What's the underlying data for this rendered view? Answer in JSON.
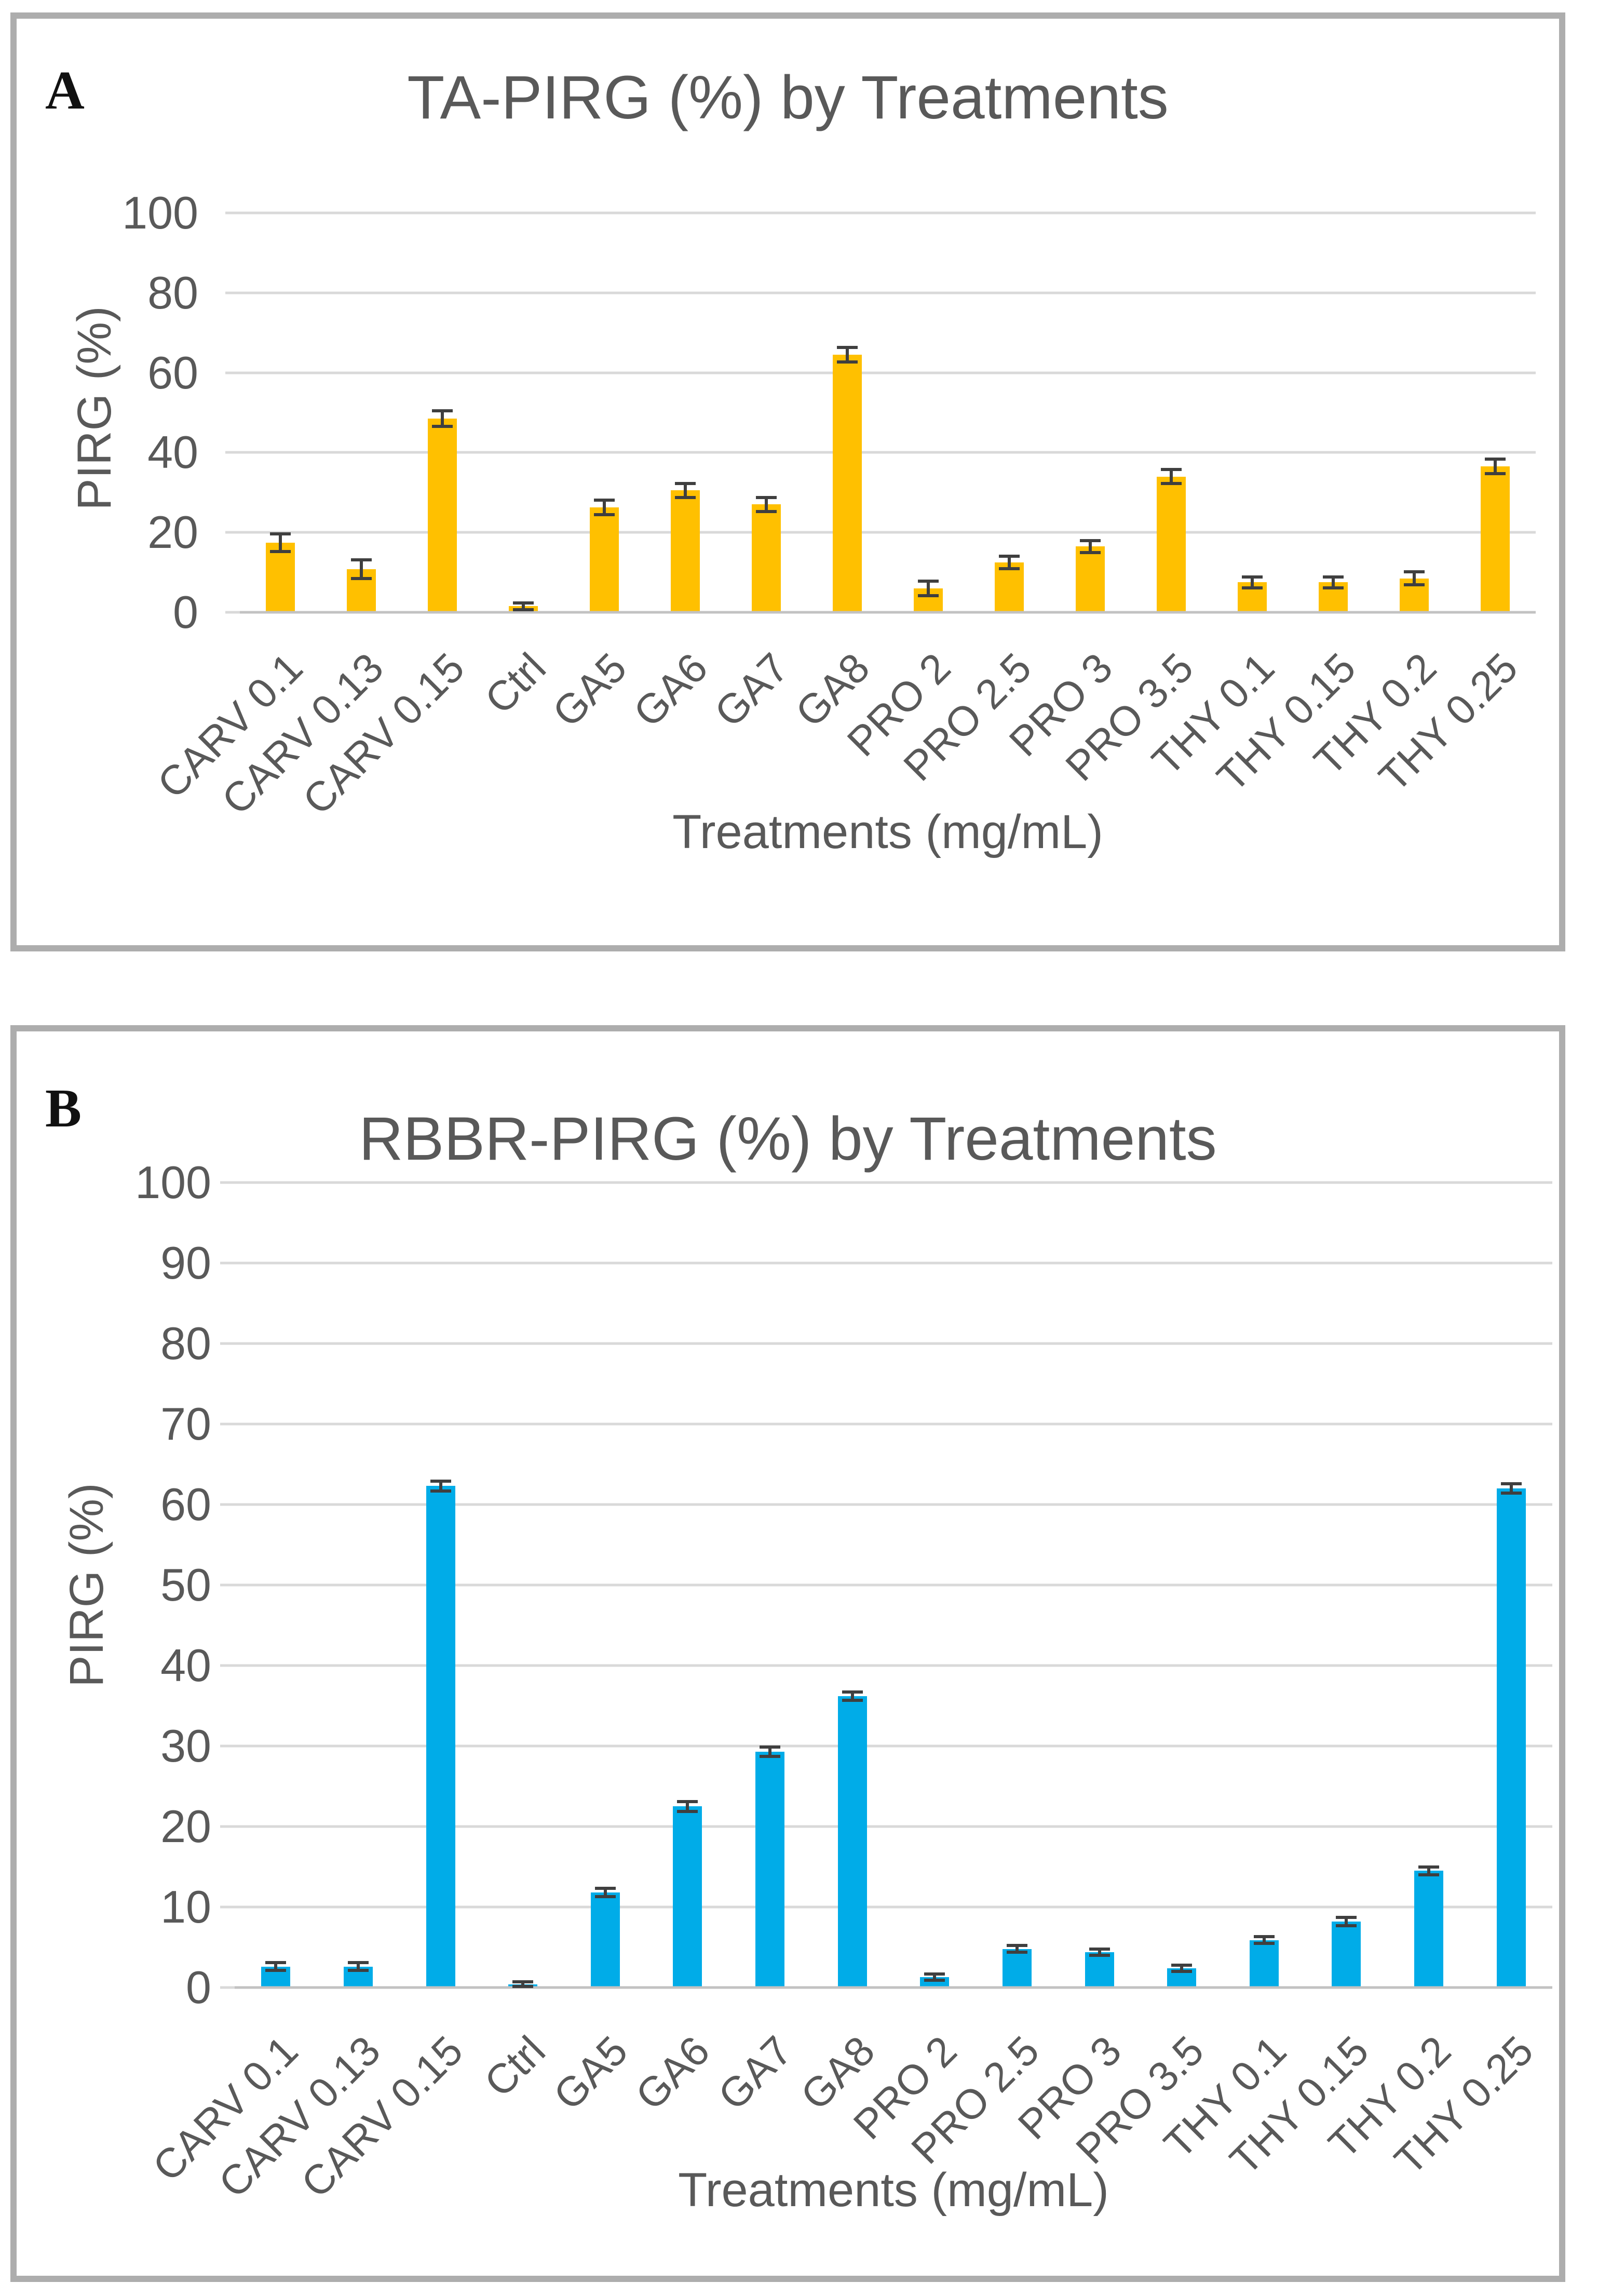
{
  "panels": [
    {
      "label": "A",
      "title": "TA-PIRG (%) by Treatments",
      "y_axis_label": "PIRG (%)",
      "x_axis_label": "Treatments (mg/mL)"
    },
    {
      "label": "B",
      "title": "RBBR-PIRG (%) by Treatments",
      "y_axis_label": "PIRG (%)",
      "x_axis_label": "Treatments (mg/mL)"
    }
  ],
  "colors": {
    "panel_border": "#adadad",
    "gridline": "#d9d9d9",
    "axis_line": "#c2c2c2",
    "text_gray": "#595959",
    "error_bar": "#3f3f3f",
    "bar_yellow": "#FFC000",
    "bar_blue": "#00ACE8"
  },
  "chart_data": [
    {
      "type": "bar",
      "panel": "A",
      "title": "TA-PIRG (%) by Treatments",
      "xlabel": "Treatments (mg/mL)",
      "ylabel": "PIRG (%)",
      "ylim": [
        0,
        100
      ],
      "ytick_step": 20,
      "ytick_labels": [
        "0",
        "20",
        "40",
        "60",
        "80",
        "100"
      ],
      "grid": true,
      "legend": false,
      "bar_color": "#FFC000",
      "error_bar_color": "#3f3f3f",
      "categories": [
        "CARV 0.1",
        "CARV 0.13",
        "CARV 0.15",
        "Ctrl",
        "GA5",
        "GA6",
        "GA7",
        "GA8",
        "PRO 2",
        "PRO 2.5",
        "PRO 3",
        "PRO 3.5",
        "THY 0.1",
        "THY 0.15",
        "THY 0.2",
        "THY 0.25"
      ],
      "values": [
        17.4,
        10.8,
        48.5,
        1.5,
        26.3,
        30.5,
        27.0,
        64.5,
        6.0,
        12.5,
        16.5,
        34.0,
        7.5,
        7.5,
        8.5,
        36.5
      ],
      "errors": [
        2.2,
        2.3,
        2.0,
        0.8,
        1.8,
        1.8,
        1.8,
        1.8,
        1.8,
        1.6,
        1.5,
        1.8,
        1.4,
        1.4,
        1.6,
        1.8
      ]
    },
    {
      "type": "bar",
      "panel": "B",
      "title": "RBBR-PIRG (%) by Treatments",
      "xlabel": "Treatments (mg/mL)",
      "ylabel": "PIRG (%)",
      "ylim": [
        0,
        100
      ],
      "ytick_step": 10,
      "ytick_labels": [
        "0",
        "10",
        "20",
        "30",
        "40",
        "50",
        "60",
        "70",
        "80",
        "90",
        "100"
      ],
      "grid": true,
      "legend": false,
      "bar_color": "#00ACE8",
      "error_bar_color": "#3f3f3f",
      "categories": [
        "CARV 0.1",
        "CARV 0.13",
        "CARV 0.15",
        "Ctrl",
        "GA5",
        "GA6",
        "GA7",
        "GA8",
        "PRO 2",
        "PRO 2.5",
        "PRO 3",
        "PRO 3.5",
        "THY 0.1",
        "THY 0.15",
        "THY 0.2",
        "THY 0.25"
      ],
      "values": [
        2.6,
        2.6,
        62.3,
        0.4,
        11.8,
        22.5,
        29.3,
        36.2,
        1.3,
        4.8,
        4.4,
        2.4,
        5.9,
        8.2,
        14.5,
        62.0
      ],
      "errors": [
        0.5,
        0.5,
        0.6,
        0.3,
        0.5,
        0.6,
        0.6,
        0.5,
        0.4,
        0.4,
        0.4,
        0.4,
        0.4,
        0.5,
        0.5,
        0.6
      ]
    }
  ]
}
